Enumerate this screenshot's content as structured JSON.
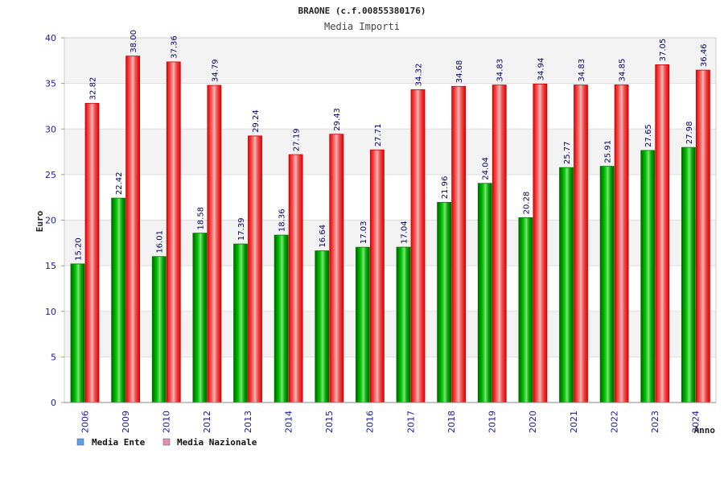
{
  "chart_data": {
    "type": "bar",
    "title": "BRAONE (c.f.00855380176)",
    "subtitle": "Media Importi",
    "xlabel": "Anno",
    "ylabel": "Euro",
    "ylim": [
      0,
      40
    ],
    "yticks": [
      "0",
      "5",
      "10",
      "15",
      "20",
      "25",
      "30",
      "35",
      "40"
    ],
    "categories": [
      "2006",
      "2009",
      "2010",
      "2012",
      "2013",
      "2014",
      "2015",
      "2016",
      "2017",
      "2018",
      "2019",
      "2020",
      "2021",
      "2022",
      "2023",
      "2024"
    ],
    "series": [
      {
        "name": "Media Ente",
        "color": "#00aa00",
        "legend_color": "#5aa0e6",
        "values": [
          15.2,
          22.42,
          16.01,
          18.58,
          17.39,
          18.36,
          16.64,
          17.03,
          17.04,
          21.96,
          24.04,
          20.28,
          25.77,
          25.91,
          27.65,
          27.98
        ],
        "labels": [
          "15.20",
          "22.42",
          "16.01",
          "18.58",
          "17.39",
          "18.36",
          "16.64",
          "17.03",
          "17.04",
          "21.96",
          "24.04",
          "20.28",
          "25.77",
          "25.91",
          "27.65",
          "27.98"
        ]
      },
      {
        "name": "Media Nazionale",
        "color": "#ee0000",
        "legend_color": "#e58fb7",
        "values": [
          32.82,
          38.0,
          37.36,
          34.79,
          29.24,
          27.19,
          29.43,
          27.71,
          34.32,
          34.68,
          34.83,
          34.94,
          34.83,
          34.85,
          37.05,
          36.46
        ],
        "labels": [
          "32.82",
          "38.00",
          "37.36",
          "34.79",
          "29.24",
          "27.19",
          "29.43",
          "27.71",
          "34.32",
          "34.68",
          "34.83",
          "34.94",
          "34.83",
          "34.85",
          "37.05",
          "36.46"
        ]
      }
    ],
    "grid": true,
    "legend_position": "bottom-left"
  }
}
